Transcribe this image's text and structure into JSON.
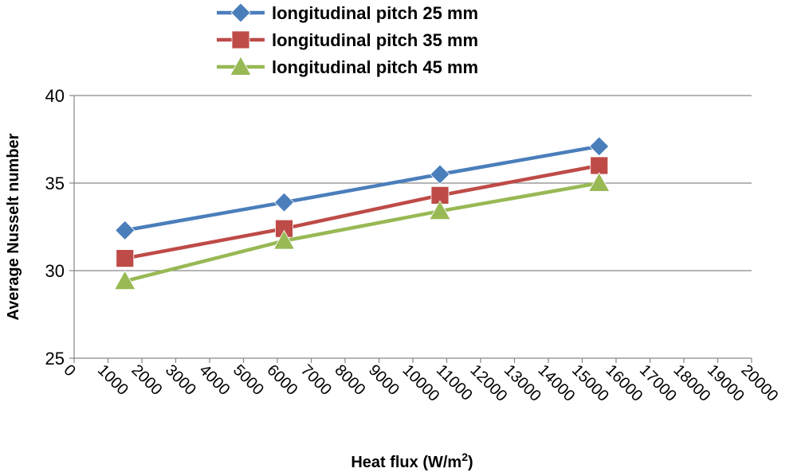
{
  "chart_data": {
    "type": "line",
    "title": "",
    "xlabel": "Heat flux (W/m",
    "xlabel_sup": "2",
    "xlabel_close": ")",
    "ylabel": "Average Nusselt number",
    "xlim": [
      0,
      20000
    ],
    "ylim": [
      25,
      40
    ],
    "x_ticks": [
      "0",
      "1000",
      "2000",
      "3000",
      "4000",
      "5000",
      "6000",
      "7000",
      "8000",
      "9000",
      "10000",
      "11000",
      "12000",
      "13000",
      "14000",
      "15000",
      "16000",
      "17000",
      "18000",
      "19000",
      "20000"
    ],
    "y_ticks": [
      "25",
      "30",
      "35",
      "40"
    ],
    "grid": "horizontal",
    "legend_position": "top",
    "x": [
      1500,
      6200,
      10800,
      15500
    ],
    "series": [
      {
        "name": "longitudinal pitch 25 mm",
        "color": "#4a7ebb",
        "marker": "diamond",
        "values": [
          32.3,
          33.9,
          35.5,
          37.1
        ]
      },
      {
        "name": "longitudinal pitch 35 mm",
        "color": "#be4b48",
        "marker": "square",
        "values": [
          30.7,
          32.4,
          34.3,
          36.0
        ]
      },
      {
        "name": "longitudinal pitch 45 mm",
        "color": "#98b954",
        "marker": "triangle",
        "values": [
          29.4,
          31.7,
          33.4,
          35.0
        ]
      }
    ]
  }
}
